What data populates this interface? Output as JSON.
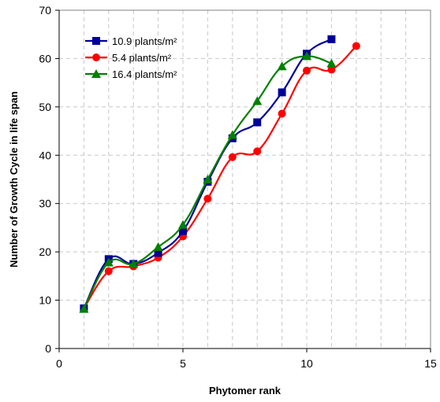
{
  "chart_data": {
    "type": "line",
    "xlabel": "Phytomer rank",
    "ylabel": "Number of Growth Cycle in life span",
    "xlim": [
      0,
      15
    ],
    "ylim": [
      0,
      70
    ],
    "x_ticks": [
      0,
      5,
      10,
      15
    ],
    "y_ticks": [
      0,
      10,
      20,
      30,
      40,
      50,
      60,
      70
    ],
    "grid": true,
    "legend_position": "top-left",
    "series": [
      {
        "name": "10.9 plants/m²",
        "color": "#000099",
        "marker": "square",
        "x": [
          1,
          2,
          3,
          4,
          5,
          6,
          7,
          8,
          9,
          10,
          11
        ],
        "y": [
          8.3,
          18.5,
          17.5,
          19.8,
          24.3,
          34.5,
          43.5,
          46.8,
          53,
          61,
          64
        ]
      },
      {
        "name": "5.4 plants/m²",
        "color": "#ff0000",
        "marker": "circle",
        "x": [
          1,
          2,
          3,
          4,
          5,
          6,
          7,
          8,
          9,
          10,
          11,
          12
        ],
        "y": [
          8.3,
          16,
          17,
          18.8,
          23.2,
          31,
          39.6,
          40.8,
          48.6,
          57.5,
          57.7,
          62.6
        ]
      },
      {
        "name": "16.4 plants/m²",
        "color": "#008000",
        "marker": "triangle",
        "x": [
          1,
          2,
          3,
          4,
          5,
          6,
          7,
          8,
          9,
          10,
          11
        ],
        "y": [
          8.2,
          17.8,
          17.5,
          21,
          25.6,
          35,
          44.2,
          51.2,
          58.4,
          60.5,
          59
        ]
      }
    ]
  }
}
